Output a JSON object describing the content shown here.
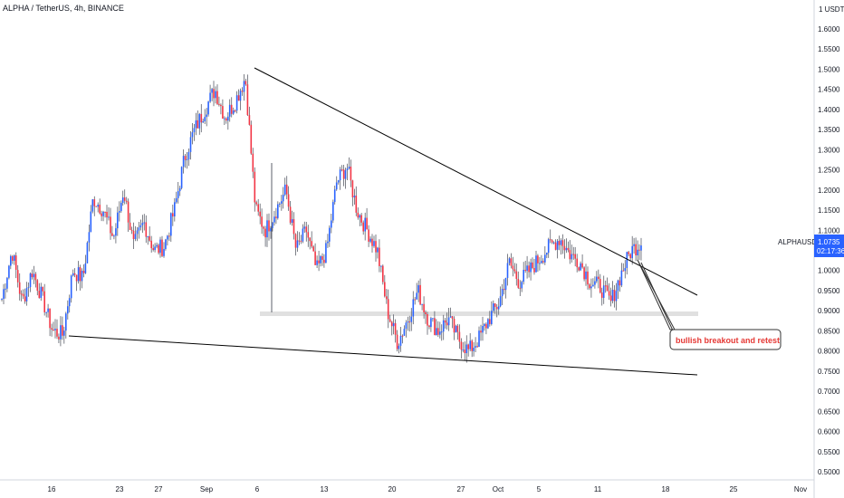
{
  "header": {
    "title": "ALPHA / TetherUS, 4h, BINANCE",
    "currency": "1 USDT"
  },
  "chart_data": {
    "type": "candlestick",
    "symbol": "ALPHAUSDT",
    "timeframe": "4h",
    "exchange": "BINANCE",
    "y_axis": {
      "range": [
        0.5,
        1.65
      ],
      "ticks": [
        "1.6000",
        "1.5500",
        "1.5000",
        "1.4500",
        "1.4000",
        "1.3500",
        "1.3000",
        "1.2500",
        "1.2000",
        "1.1500",
        "1.1000",
        "1.0500",
        "1.0000",
        "0.9500",
        "0.9000",
        "0.8500",
        "0.8000",
        "0.7500",
        "0.7000",
        "0.6500",
        "0.6000",
        "0.5500",
        "0.5000"
      ]
    },
    "x_axis": {
      "ticks": [
        "16",
        "23",
        "27",
        "Sep",
        "6",
        "13",
        "20",
        "27",
        "Oct",
        "5",
        "11",
        "18",
        "25",
        "Nov"
      ]
    },
    "price_label": {
      "symbol": "ALPHAUSDT",
      "price": "1.0735",
      "countdown": "02:17:36"
    },
    "price_path": [
      {
        "x": "Aug 13",
        "y": 0.93
      },
      {
        "x": "Aug 14",
        "y": 1.05
      },
      {
        "x": "Aug 15",
        "y": 0.92
      },
      {
        "x": "Aug 16",
        "y": 1.0
      },
      {
        "x": "Aug 17",
        "y": 0.93
      },
      {
        "x": "Aug 18",
        "y": 0.85
      },
      {
        "x": "Aug 19",
        "y": 0.84
      },
      {
        "x": "Aug 20",
        "y": 1.0
      },
      {
        "x": "Aug 21",
        "y": 0.98
      },
      {
        "x": "Aug 22",
        "y": 1.18
      },
      {
        "x": "Aug 23",
        "y": 1.15
      },
      {
        "x": "Aug 24",
        "y": 1.08
      },
      {
        "x": "Aug 25",
        "y": 1.2
      },
      {
        "x": "Aug 26",
        "y": 1.06
      },
      {
        "x": "Aug 27",
        "y": 1.12
      },
      {
        "x": "Aug 28",
        "y": 1.05
      },
      {
        "x": "Aug 29",
        "y": 1.06
      },
      {
        "x": "Aug 30",
        "y": 1.15
      },
      {
        "x": "Aug 31",
        "y": 1.28
      },
      {
        "x": "Sep 1",
        "y": 1.35
      },
      {
        "x": "Sep 2",
        "y": 1.4
      },
      {
        "x": "Sep 3",
        "y": 1.45
      },
      {
        "x": "Sep 4",
        "y": 1.38
      },
      {
        "x": "Sep 5",
        "y": 1.42
      },
      {
        "x": "Sep 6",
        "y": 1.48
      },
      {
        "x": "Sep 7",
        "y": 1.15
      },
      {
        "x": "Sep 8",
        "y": 1.1
      },
      {
        "x": "Sep 9",
        "y": 1.15
      },
      {
        "x": "Sep 10",
        "y": 1.2
      },
      {
        "x": "Sep 11",
        "y": 1.05
      },
      {
        "x": "Sep 12",
        "y": 1.1
      },
      {
        "x": "Sep 13",
        "y": 1.0
      },
      {
        "x": "Sep 14",
        "y": 1.05
      },
      {
        "x": "Sep 15",
        "y": 1.22
      },
      {
        "x": "Sep 16",
        "y": 1.26
      },
      {
        "x": "Sep 17",
        "y": 1.15
      },
      {
        "x": "Sep 18",
        "y": 1.1
      },
      {
        "x": "Sep 19",
        "y": 1.05
      },
      {
        "x": "Sep 20",
        "y": 0.9
      },
      {
        "x": "Sep 21",
        "y": 0.82
      },
      {
        "x": "Sep 22",
        "y": 0.88
      },
      {
        "x": "Sep 23",
        "y": 0.95
      },
      {
        "x": "Sep 24",
        "y": 0.88
      },
      {
        "x": "Sep 25",
        "y": 0.85
      },
      {
        "x": "Sep 26",
        "y": 0.88
      },
      {
        "x": "Sep 27",
        "y": 0.83
      },
      {
        "x": "Sep 28",
        "y": 0.8
      },
      {
        "x": "Sep 29",
        "y": 0.83
      },
      {
        "x": "Sep 30",
        "y": 0.88
      },
      {
        "x": "Oct 1",
        "y": 0.92
      },
      {
        "x": "Oct 2",
        "y": 1.02
      },
      {
        "x": "Oct 3",
        "y": 0.97
      },
      {
        "x": "Oct 4",
        "y": 1.0
      },
      {
        "x": "Oct 5",
        "y": 1.03
      },
      {
        "x": "Oct 6",
        "y": 1.06
      },
      {
        "x": "Oct 7",
        "y": 1.08
      },
      {
        "x": "Oct 8",
        "y": 1.04
      },
      {
        "x": "Oct 9",
        "y": 1.02
      },
      {
        "x": "Oct 10",
        "y": 0.97
      },
      {
        "x": "Oct 11",
        "y": 0.96
      },
      {
        "x": "Oct 12",
        "y": 0.92
      },
      {
        "x": "Oct 13",
        "y": 0.99
      },
      {
        "x": "Oct 14",
        "y": 1.05
      },
      {
        "x": "Oct 15",
        "y": 1.07
      }
    ],
    "drawings": {
      "upper_trendline": "descending resistance line from Sep 6 high",
      "lower_trendline": "descending support line",
      "support_zone": 0.895,
      "annotation": "bullish breakout and retest"
    },
    "colors": {
      "up": "#2962ff",
      "down": "#f23645",
      "wick": "#5d606b",
      "line": "#000000",
      "zone": "#e0e0e0",
      "annotation_text": "#e53935",
      "price_label_bg": "#2962ff"
    }
  }
}
